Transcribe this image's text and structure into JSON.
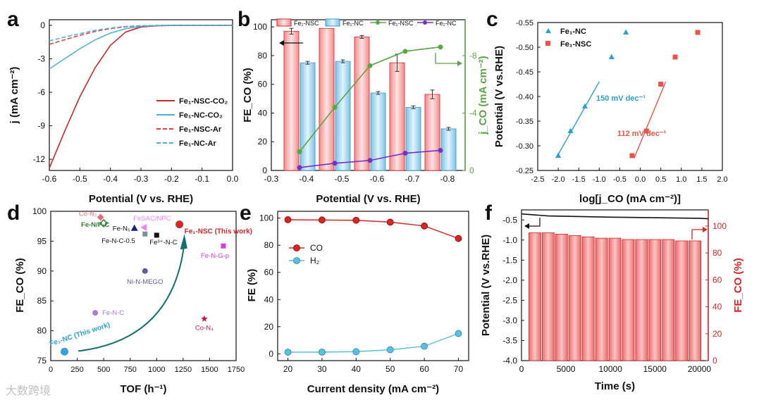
{
  "watermark": "大数跨境",
  "colors": {
    "red": "#d62728",
    "redFill": "#f4a6a6",
    "cyan": "#4db3d6",
    "blueFill": "#a9d9ef",
    "green": "#5aa545",
    "purple": "#7a2fc4",
    "teal": "#2aa8a0",
    "salmon": "#e8544a"
  },
  "chart_data": [
    {
      "panel": "a",
      "type": "line",
      "xlabel": "Potential (V vs. RHE)",
      "ylabel": "j (mA cm⁻²)",
      "xlim": [
        -0.6,
        0.0
      ],
      "ylim": [
        -13,
        0.5
      ],
      "xticks": [
        "-0.6",
        "-0.5",
        "-0.4",
        "-0.3",
        "-0.2",
        "-0.1",
        "0.0"
      ],
      "yticks": [
        "0",
        "-3",
        "-6",
        "-9",
        "-12"
      ],
      "legend_position": "right",
      "series": [
        {
          "name": "Fe₁-NSC-CO₂",
          "style": "solid",
          "color": "#c62828",
          "x": [
            -0.6,
            -0.55,
            -0.5,
            -0.45,
            -0.4,
            -0.35,
            -0.3,
            -0.25,
            -0.2,
            -0.1,
            0.0
          ],
          "y": [
            -12.8,
            -9.5,
            -6.4,
            -3.8,
            -1.8,
            -0.6,
            -0.15,
            -0.05,
            -0.02,
            0.0,
            0.0
          ]
        },
        {
          "name": "Fe₁-NC-CO₂",
          "style": "solid",
          "color": "#4db3d6",
          "x": [
            -0.6,
            -0.55,
            -0.5,
            -0.45,
            -0.4,
            -0.35,
            -0.3,
            -0.25,
            -0.2,
            -0.1,
            0.0
          ],
          "y": [
            -3.9,
            -3.0,
            -2.1,
            -1.3,
            -0.7,
            -0.3,
            -0.1,
            -0.03,
            0.0,
            0.0,
            0.0
          ]
        },
        {
          "name": "Fe₁-NSC-Ar",
          "style": "dashed",
          "color": "#e04040",
          "x": [
            -0.6,
            -0.55,
            -0.5,
            -0.45,
            -0.4,
            -0.35,
            -0.3,
            -0.25,
            -0.2,
            -0.1,
            0.0
          ],
          "y": [
            -1.7,
            -1.3,
            -0.9,
            -0.55,
            -0.3,
            -0.13,
            -0.05,
            -0.02,
            0.0,
            0.0,
            0.0
          ]
        },
        {
          "name": "Fe₁-NC-Ar",
          "style": "dashed",
          "color": "#4db3d6",
          "x": [
            -0.6,
            -0.55,
            -0.5,
            -0.45,
            -0.4,
            -0.35,
            -0.3,
            -0.25,
            -0.2,
            -0.1,
            0.0
          ],
          "y": [
            -1.4,
            -1.05,
            -0.75,
            -0.45,
            -0.25,
            -0.1,
            -0.04,
            -0.01,
            0.0,
            0.0,
            0.0
          ]
        }
      ]
    },
    {
      "panel": "b",
      "type": "bar",
      "xlabel": "Potential (V vs. RHE)",
      "ylabel": "FE_CO (%)",
      "y2label": "j_CO (mA cm⁻²)",
      "xlim": [
        -0.3,
        -0.85
      ],
      "ylim": [
        0,
        100
      ],
      "y2lim": [
        0,
        -10
      ],
      "xticks": [
        "-0.3",
        "-0.4",
        "-0.5",
        "-0.6",
        "-0.7",
        "-0.8"
      ],
      "yticks": [
        "0",
        "20",
        "40",
        "60",
        "80",
        "100"
      ],
      "y2ticks": [
        "0",
        "-4",
        "-8"
      ],
      "legend_position": "top",
      "categories": [
        -0.38,
        -0.48,
        -0.58,
        -0.68,
        -0.78
      ],
      "series": [
        {
          "name": "Fe₁-NSC",
          "kind": "bar",
          "values": [
            97,
            99,
            93,
            75,
            53
          ],
          "errors": [
            2,
            0,
            1,
            6,
            3
          ]
        },
        {
          "name": "Fe₁-NC",
          "kind": "bar",
          "values": [
            75,
            76,
            54,
            44,
            29
          ],
          "errors": [
            1,
            1,
            1,
            1,
            1
          ]
        },
        {
          "name": "Fe₁-NSC",
          "kind": "line",
          "axis": "y2",
          "values": [
            -1.3,
            -4.4,
            -7.3,
            -8.3,
            -8.6
          ]
        },
        {
          "name": "Fe₁-NC",
          "kind": "line",
          "axis": "y2",
          "values": [
            -0.2,
            -0.5,
            -0.7,
            -1.2,
            -1.4
          ]
        }
      ]
    },
    {
      "panel": "c",
      "type": "scatter",
      "xlabel": "log[j_CO (mA cm⁻²)]",
      "ylabel": "Potential (V vs.RHE)",
      "xlim": [
        -2.5,
        2.0
      ],
      "ylim": [
        -0.25,
        -0.55
      ],
      "xticks": [
        "-2.5",
        "-2.0",
        "-1.5",
        "-1.0",
        "-0.5",
        "0.0",
        "0.5",
        "1.0",
        "1.5",
        "2.0"
      ],
      "yticks": [
        "-0.25",
        "-0.30",
        "-0.35",
        "-0.40",
        "-0.45",
        "-0.50",
        "-0.55"
      ],
      "legend_position": "top-left",
      "series": [
        {
          "name": "Fe₁-NC",
          "marker": "triangle",
          "x": [
            -2.0,
            -1.7,
            -1.35,
            -0.7,
            -0.35
          ],
          "y": [
            -0.28,
            -0.33,
            -0.38,
            -0.48,
            -0.53
          ]
        },
        {
          "name": "Fe₁-NSC",
          "marker": "square",
          "x": [
            -0.2,
            0.15,
            0.5,
            0.85,
            1.4
          ],
          "y": [
            -0.28,
            -0.33,
            -0.425,
            -0.48,
            -0.53
          ]
        }
      ],
      "fits": [
        {
          "label": "150 mV dec⁻¹",
          "x": [
            -2.05,
            -1.0
          ],
          "y": [
            -0.275,
            -0.43
          ]
        },
        {
          "label": "112 mV dec⁻¹",
          "x": [
            -0.15,
            0.62
          ],
          "y": [
            -0.275,
            -0.43
          ]
        }
      ]
    },
    {
      "panel": "d",
      "type": "scatter",
      "xlabel": "TOF (h⁻¹)",
      "ylabel": "FE_CO (%)",
      "xlim": [
        0,
        1750
      ],
      "ylim": [
        75,
        100
      ],
      "xticks": [
        "0",
        "250",
        "500",
        "750",
        "1000",
        "1250",
        "1500",
        "1750"
      ],
      "yticks": [
        "75",
        "80",
        "85",
        "90",
        "95",
        "100"
      ],
      "points": [
        {
          "label": "Co-N₂",
          "x": 470,
          "y": 99.0,
          "shape": "diamond",
          "color": "#e07080"
        },
        {
          "label": "Fe-N/P-C",
          "x": 500,
          "y": 98.0,
          "shape": "diamond-open",
          "color": "#2e7d32"
        },
        {
          "label": "Fe-N₅",
          "x": 790,
          "y": 97.2,
          "shape": "triangle",
          "color": "#1a237e"
        },
        {
          "label": "FeSAC/NPC",
          "x": 880,
          "y": 97.3,
          "shape": "triangle-left",
          "color": "#ee82ee"
        },
        {
          "label": "Fe-N-C-0.5",
          "x": 890,
          "y": 96.2,
          "shape": "square",
          "color": "#78909c"
        },
        {
          "label": "Fe³⁺-N-C",
          "x": 1000,
          "y": 96.0,
          "shape": "square",
          "color": "#111111"
        },
        {
          "label": "Fe₁-NSC (This work)",
          "x": 1215,
          "y": 97.8,
          "shape": "circle",
          "color": "#d62728"
        },
        {
          "label": "Fe-N-G-p",
          "x": 1630,
          "y": 94.2,
          "shape": "square",
          "color": "#d63bd6"
        },
        {
          "label": "Ni-N-MEGO",
          "x": 890,
          "y": 90.0,
          "shape": "circle",
          "color": "#5c5c9c"
        },
        {
          "label": "Fe-N-C",
          "x": 420,
          "y": 83.0,
          "shape": "hexagon",
          "color": "#b07ad8"
        },
        {
          "label": "Co-N₄",
          "x": 1450,
          "y": 82.0,
          "shape": "star",
          "color": "#c2185b"
        },
        {
          "label": "Fe₁-NC (This work)",
          "x": 130,
          "y": 76.5,
          "shape": "circle",
          "color": "#3aa0d8"
        }
      ]
    },
    {
      "panel": "e",
      "type": "line",
      "xlabel": "Current density (mA cm⁻²)",
      "ylabel": "FE (%)",
      "xlim": [
        17,
        73
      ],
      "ylim": [
        -5,
        105
      ],
      "xticks": [
        "20",
        "30",
        "40",
        "50",
        "60",
        "70"
      ],
      "yticks": [
        "0",
        "20",
        "40",
        "60",
        "80",
        "100"
      ],
      "legend_position": "left",
      "series": [
        {
          "name": "CO",
          "x": [
            20,
            30,
            40,
            50,
            60,
            70
          ],
          "y": [
            98.8,
            98.6,
            98.4,
            97.0,
            94.2,
            85.0
          ]
        },
        {
          "name": "H₂",
          "x": [
            20,
            30,
            40,
            50,
            60,
            70
          ],
          "y": [
            1.2,
            1.3,
            1.6,
            3.0,
            5.6,
            15.0
          ]
        }
      ]
    },
    {
      "panel": "f",
      "type": "bar",
      "xlabel": "Time (s)",
      "ylabel": "Potential (V vs.RHE)",
      "y2label": "FE_CO (%)",
      "xlim": [
        0,
        21000
      ],
      "ylim": [
        -4.0,
        -0.25
      ],
      "y2lim": [
        0,
        112
      ],
      "xticks": [
        "0",
        "5000",
        "10000",
        "15000",
        "20000"
      ],
      "yticks": [
        "-0.5",
        "-1.0",
        "-1.5",
        "-2.0",
        "-2.5",
        "-3.0",
        "-3.5",
        "-4.0"
      ],
      "y2ticks": [
        "0",
        "20",
        "40",
        "60",
        "80",
        "100"
      ],
      "bars_x": [
        1500,
        3000,
        4500,
        6000,
        7500,
        9000,
        10500,
        12000,
        13500,
        15000,
        16500,
        18000,
        19500
      ],
      "bars_fe": [
        95,
        95,
        94,
        93,
        92,
        91,
        91,
        90,
        90,
        90,
        90,
        89,
        89
      ],
      "potential_line": {
        "x": [
          0,
          3000,
          10000,
          20000,
          21000
        ],
        "y": [
          -0.35,
          -0.4,
          -0.43,
          -0.46,
          -0.47
        ]
      }
    }
  ]
}
